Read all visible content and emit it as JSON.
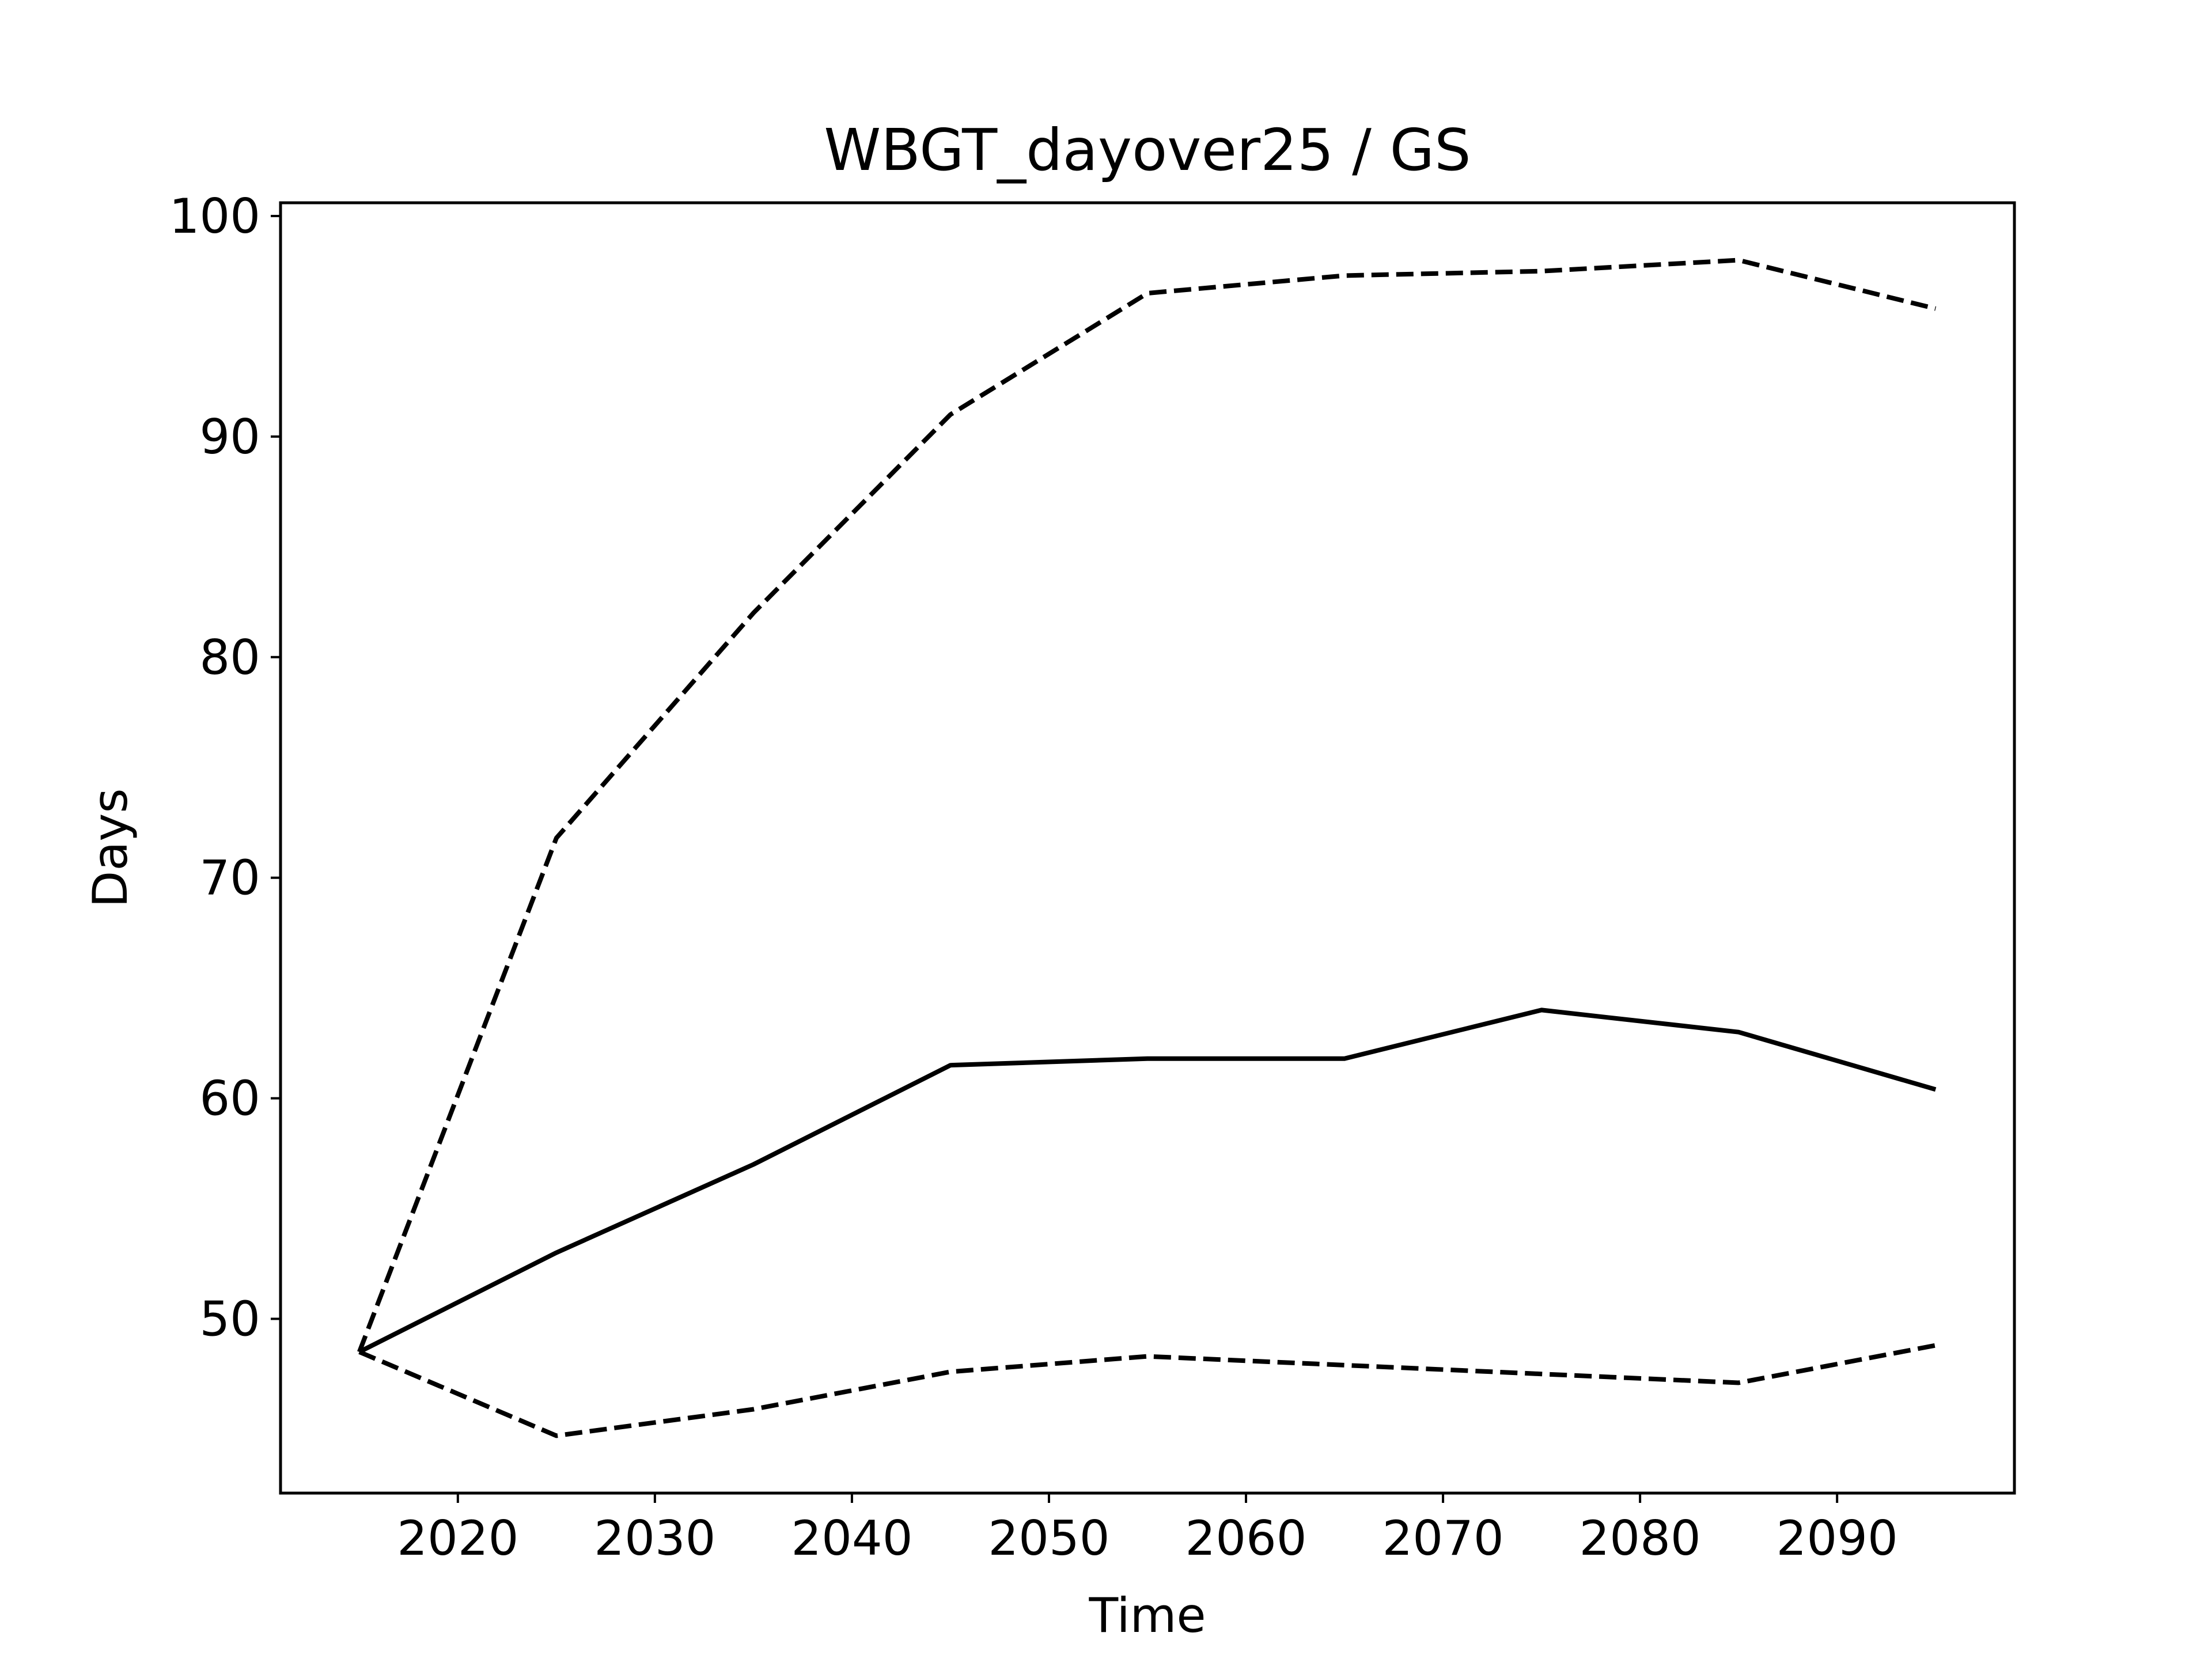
{
  "chart_data": {
    "type": "line",
    "title": "WBGT_dayover25 / GS",
    "xlabel": "Time",
    "ylabel": "Days",
    "xlim": [
      2011,
      2099
    ],
    "ylim": [
      42.1,
      100.6
    ],
    "xticks": [
      2020,
      2030,
      2040,
      2050,
      2060,
      2070,
      2080,
      2090
    ],
    "yticks": [
      50,
      60,
      70,
      80,
      90,
      100
    ],
    "grid": false,
    "legend": null,
    "x": [
      2015,
      2025,
      2035,
      2045,
      2055,
      2065,
      2075,
      2085,
      2095
    ],
    "series": [
      {
        "line_style": "solid",
        "color": "#000000",
        "values": [
          48.5,
          53.0,
          57.0,
          61.5,
          61.8,
          61.8,
          64.0,
          63.0,
          60.4
        ]
      },
      {
        "line_style": "dashed",
        "color": "#000000",
        "values": [
          48.5,
          71.8,
          82.0,
          91.0,
          96.5,
          97.3,
          97.5,
          98.0,
          95.8
        ]
      },
      {
        "line_style": "dashed",
        "color": "#000000",
        "values": [
          48.5,
          44.7,
          45.9,
          47.6,
          48.3,
          47.9,
          47.5,
          47.1,
          48.8
        ]
      }
    ]
  }
}
